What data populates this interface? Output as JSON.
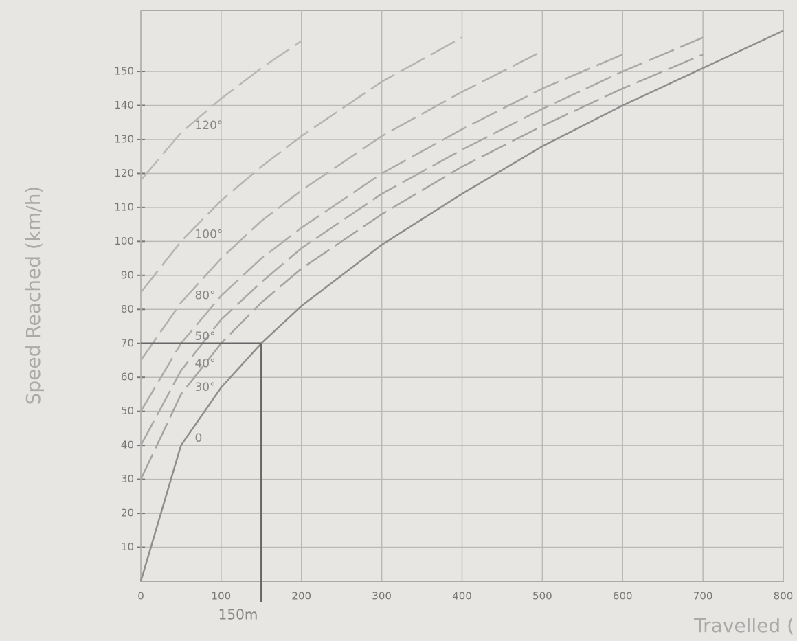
{
  "chart_data": {
    "type": "line",
    "y_label": "Speed Reached (km/h)",
    "x_label": "Travelled (",
    "x": [
      0,
      50,
      100,
      150,
      200,
      300,
      400,
      500,
      600,
      700,
      800
    ],
    "series": [
      {
        "name": "0",
        "color": "#8e8e8e",
        "values": [
          0,
          40,
          57,
          70,
          81,
          99,
          114,
          128,
          140,
          151,
          162
        ]
      },
      {
        "name": "30°",
        "color": "#a4a4a4",
        "values": [
          30,
          55,
          70,
          82,
          92,
          108,
          122,
          134,
          145,
          155,
          null
        ]
      },
      {
        "name": "40°",
        "color": "#a8a8a8",
        "values": [
          40,
          62,
          77,
          88,
          98,
          114,
          127,
          139,
          150,
          160,
          null
        ]
      },
      {
        "name": "50°",
        "color": "#acacac",
        "values": [
          50,
          70,
          84,
          95,
          104,
          120,
          133,
          145,
          155,
          null,
          null
        ]
      },
      {
        "name": "80°",
        "color": "#b0b0b0",
        "values": [
          65,
          82,
          95,
          106,
          115,
          131,
          144,
          156,
          null,
          null,
          null
        ]
      },
      {
        "name": "100°",
        "color": "#b4b4b4",
        "values": [
          85,
          100,
          112,
          122,
          131,
          147,
          160,
          null,
          null,
          null,
          null
        ]
      },
      {
        "name": "120°",
        "color": "#b8b8b8",
        "values": [
          118,
          132,
          142,
          151,
          159,
          null,
          null,
          null,
          null,
          null,
          null
        ]
      }
    ],
    "annotation": {
      "text": "150m",
      "x": 150,
      "y": 70
    },
    "xlim": [
      0,
      800
    ],
    "ylim": [
      0,
      168
    ],
    "xticks": [
      0,
      100,
      200,
      300,
      400,
      500,
      600,
      700,
      800
    ],
    "yticks": [
      10,
      20,
      30,
      40,
      50,
      60,
      70,
      80,
      90,
      100,
      110,
      120,
      130,
      140,
      150
    ],
    "grid": true
  }
}
